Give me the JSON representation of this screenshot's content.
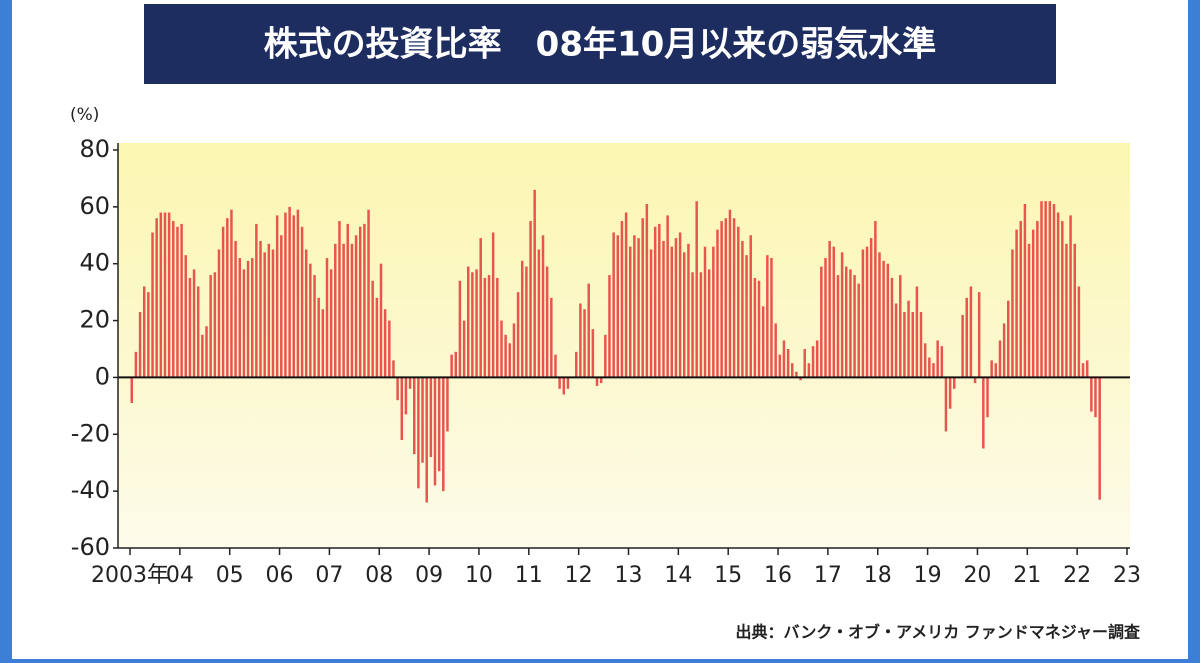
{
  "chart_data": {
    "type": "bar",
    "title": "株式の投資比率　08年10月以来の弱気水準",
    "y_label": "(%)",
    "source": "出典：バンク・オブ・アメリカ ファンドマネジャー調査",
    "color": "#e8554e",
    "ylim": [
      -60,
      80
    ],
    "yticks": [
      -60,
      -40,
      -20,
      0,
      20,
      40,
      60,
      80
    ],
    "xlim": [
      2003,
      2023
    ],
    "xticks": [
      {
        "value": 2003,
        "label": "2003年"
      },
      {
        "value": 2004,
        "label": "04"
      },
      {
        "value": 2005,
        "label": "05"
      },
      {
        "value": 2006,
        "label": "06"
      },
      {
        "value": 2007,
        "label": "07"
      },
      {
        "value": 2008,
        "label": "08"
      },
      {
        "value": 2009,
        "label": "09"
      },
      {
        "value": 2010,
        "label": "10"
      },
      {
        "value": 2011,
        "label": "11"
      },
      {
        "value": 2012,
        "label": "12"
      },
      {
        "value": 2013,
        "label": "13"
      },
      {
        "value": 2014,
        "label": "14"
      },
      {
        "value": 2015,
        "label": "15"
      },
      {
        "value": 2016,
        "label": "16"
      },
      {
        "value": 2017,
        "label": "17"
      },
      {
        "value": 2018,
        "label": "18"
      },
      {
        "value": 2019,
        "label": "19"
      },
      {
        "value": 2020,
        "label": "20"
      },
      {
        "value": 2021,
        "label": "21"
      },
      {
        "value": 2022,
        "label": "22"
      },
      {
        "value": 2023,
        "label": "23"
      }
    ],
    "x": [
      2003.0,
      2003.083,
      2003.167,
      2003.25,
      2003.333,
      2003.417,
      2003.5,
      2003.583,
      2003.667,
      2003.75,
      2003.833,
      2003.917,
      2004.0,
      2004.083,
      2004.167,
      2004.25,
      2004.333,
      2004.417,
      2004.5,
      2004.583,
      2004.667,
      2004.75,
      2004.833,
      2004.917,
      2005.0,
      2005.083,
      2005.167,
      2005.25,
      2005.333,
      2005.417,
      2005.5,
      2005.583,
      2005.667,
      2005.75,
      2005.833,
      2005.917,
      2006.0,
      2006.083,
      2006.167,
      2006.25,
      2006.333,
      2006.417,
      2006.5,
      2006.583,
      2006.667,
      2006.75,
      2006.833,
      2006.917,
      2007.0,
      2007.083,
      2007.167,
      2007.25,
      2007.333,
      2007.417,
      2007.5,
      2007.583,
      2007.667,
      2007.75,
      2007.833,
      2007.917,
      2008.0,
      2008.083,
      2008.167,
      2008.25,
      2008.333,
      2008.417,
      2008.5,
      2008.583,
      2008.667,
      2008.75,
      2008.833,
      2008.917,
      2009.0,
      2009.083,
      2009.167,
      2009.25,
      2009.333,
      2009.417,
      2009.5,
      2009.583,
      2009.667,
      2009.75,
      2009.833,
      2009.917,
      2010.0,
      2010.083,
      2010.167,
      2010.25,
      2010.333,
      2010.417,
      2010.5,
      2010.583,
      2010.667,
      2010.75,
      2010.833,
      2010.917,
      2011.0,
      2011.083,
      2011.167,
      2011.25,
      2011.333,
      2011.417,
      2011.5,
      2011.583,
      2011.667,
      2011.75,
      2011.833,
      2011.917,
      2012.0,
      2012.083,
      2012.167,
      2012.25,
      2012.333,
      2012.417,
      2012.5,
      2012.583,
      2012.667,
      2012.75,
      2012.833,
      2012.917,
      2013.0,
      2013.083,
      2013.167,
      2013.25,
      2013.333,
      2013.417,
      2013.5,
      2013.583,
      2013.667,
      2013.75,
      2013.833,
      2013.917,
      2014.0,
      2014.083,
      2014.167,
      2014.25,
      2014.333,
      2014.417,
      2014.5,
      2014.583,
      2014.667,
      2014.75,
      2014.833,
      2014.917,
      2015.0,
      2015.083,
      2015.167,
      2015.25,
      2015.333,
      2015.417,
      2015.5,
      2015.583,
      2015.667,
      2015.75,
      2015.833,
      2015.917,
      2016.0,
      2016.083,
      2016.167,
      2016.25,
      2016.333,
      2016.417,
      2016.5,
      2016.583,
      2016.667,
      2016.75,
      2016.833,
      2016.917,
      2017.0,
      2017.083,
      2017.167,
      2017.25,
      2017.333,
      2017.417,
      2017.5,
      2017.583,
      2017.667,
      2017.75,
      2017.833,
      2017.917,
      2018.0,
      2018.083,
      2018.167,
      2018.25,
      2018.333,
      2018.417,
      2018.5,
      2018.583,
      2018.667,
      2018.75,
      2018.833,
      2018.917,
      2019.0,
      2019.083,
      2019.167,
      2019.25,
      2019.333,
      2019.417,
      2019.5,
      2019.583,
      2019.667,
      2019.75,
      2019.833,
      2019.917,
      2020.0,
      2020.083,
      2020.167,
      2020.25,
      2020.333,
      2020.417,
      2020.5,
      2020.583,
      2020.667,
      2020.75,
      2020.833,
      2020.917,
      2021.0,
      2021.083,
      2021.167,
      2021.25,
      2021.333,
      2021.417,
      2021.5,
      2021.583,
      2021.667,
      2021.75,
      2021.833,
      2021.917,
      2022.0,
      2022.083,
      2022.167,
      2022.25,
      2022.333,
      2022.417
    ],
    "values": [
      -9,
      9,
      23,
      32,
      30,
      51,
      56,
      58,
      58,
      58,
      55,
      53,
      54,
      43,
      35,
      38,
      32,
      15,
      18,
      36,
      37,
      45,
      53,
      56,
      59,
      48,
      42,
      38,
      41,
      42,
      54,
      48,
      44,
      47,
      45,
      57,
      50,
      58,
      60,
      57,
      59,
      53,
      45,
      40,
      36,
      28,
      24,
      42,
      38,
      47,
      55,
      47,
      54,
      47,
      50,
      53,
      54,
      59,
      34,
      28,
      40,
      24,
      20,
      6,
      -8,
      -22,
      -13,
      -4,
      -27,
      -39,
      -30,
      -44,
      -28,
      -38,
      -33,
      -40,
      -19,
      8,
      9,
      34,
      20,
      39,
      37,
      38,
      49,
      35,
      36,
      51,
      35,
      20,
      15,
      12,
      19,
      30,
      41,
      39,
      55,
      66,
      45,
      50,
      39,
      28,
      8,
      -4,
      -6,
      -4,
      0,
      9,
      26,
      24,
      33,
      17,
      -3,
      -2,
      15,
      36,
      51,
      50,
      55,
      58,
      46,
      50,
      49,
      56,
      61,
      45,
      53,
      54,
      48,
      57,
      46,
      49,
      51,
      44,
      47,
      37,
      62,
      37,
      46,
      38,
      46,
      52,
      55,
      56,
      59,
      56,
      53,
      48,
      43,
      50,
      35,
      34,
      25,
      43,
      42,
      19,
      8,
      13,
      10,
      5,
      2,
      -1,
      10,
      5,
      11,
      13,
      39,
      42,
      48,
      46,
      36,
      44,
      39,
      38,
      36,
      33,
      45,
      46,
      49,
      55,
      44,
      41,
      40,
      35,
      26,
      36,
      23,
      27,
      23,
      32,
      23,
      12,
      7,
      5,
      13,
      11,
      -19,
      -11,
      -4,
      0,
      22,
      28,
      32,
      -2,
      30,
      -25,
      -14,
      6,
      5,
      13,
      19,
      27,
      45,
      52,
      55,
      61,
      47,
      52,
      55,
      62,
      62,
      62,
      61,
      58,
      55,
      47,
      57,
      47,
      32,
      5,
      6,
      -12,
      -14,
      -43
    ]
  }
}
